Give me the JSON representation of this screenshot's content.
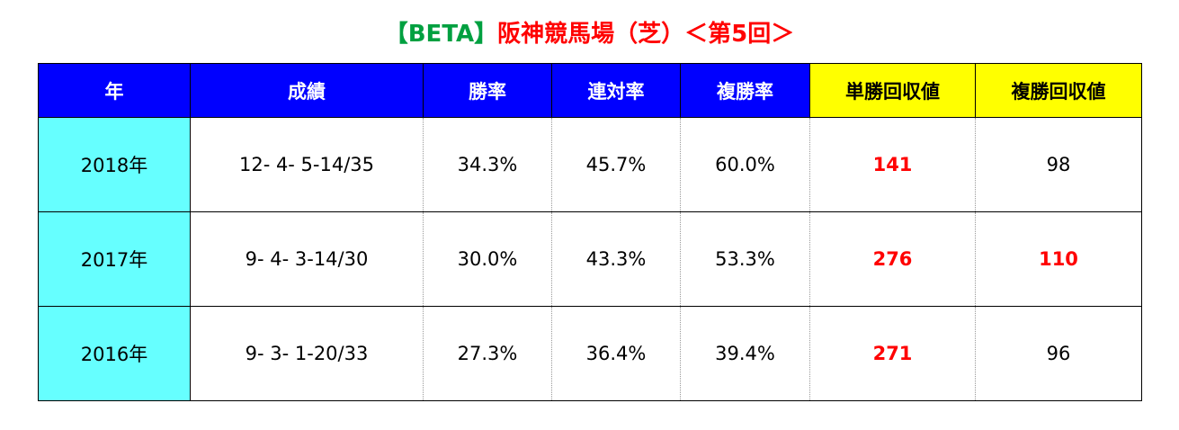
{
  "header": {
    "title_prefix": "【BETA】",
    "title_main": "阪神競馬場（芝）＜第5回＞"
  },
  "table": {
    "columns": [
      "年",
      "成績",
      "勝率",
      "連対率",
      "複勝率",
      "単勝回収値",
      "複勝回収値"
    ],
    "rows": [
      [
        "2018年",
        "12- 4- 5-14/35",
        "34.3%",
        "45.7%",
        "60.0%",
        "141",
        "98"
      ],
      [
        "2017年",
        "9- 4- 3-14/30",
        "30.0%",
        "43.3%",
        "53.3%",
        "276",
        "110"
      ],
      [
        "2016年",
        "9- 3- 1-20/33",
        "27.3%",
        "36.4%",
        "39.4%",
        "271",
        "96"
      ]
    ]
  }
}
